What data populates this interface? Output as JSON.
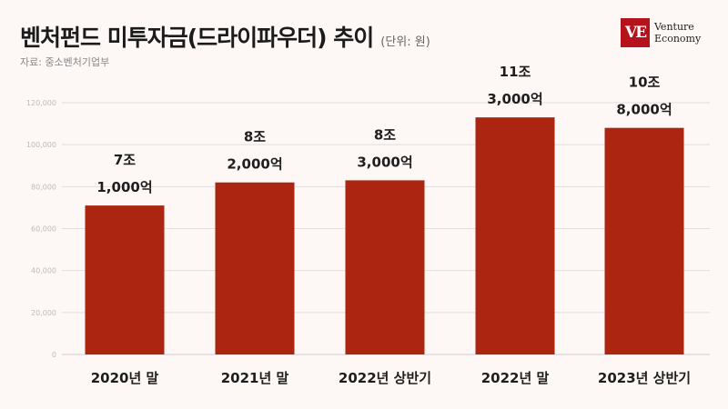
{
  "header": {
    "title": "벤처펀드 미투자금(드라이파우더) 추이",
    "unit": "(단위: 원)",
    "source": "자료: 중소벤처기업부"
  },
  "logo": {
    "mark": "VE",
    "line1": "Venture",
    "line2": "Economy",
    "color": "#b5121b"
  },
  "chart_data": {
    "type": "bar",
    "categories": [
      "2020년 말",
      "2021년 말",
      "2022년 상반기",
      "2022년 말",
      "2023년 상반기"
    ],
    "values": [
      71000,
      82000,
      83000,
      113000,
      108000
    ],
    "data_labels": [
      [
        "7조",
        "1,000억"
      ],
      [
        "8조",
        "2,000억"
      ],
      [
        "8조",
        "3,000억"
      ],
      [
        "11조",
        "3,000억"
      ],
      [
        "10조",
        "8,000억"
      ]
    ],
    "y_ticks": [
      0,
      20000,
      40000,
      60000,
      80000,
      100000,
      120000
    ],
    "y_tick_labels": [
      "0",
      "20,000",
      "40,000",
      "60,000",
      "80,000",
      "100,000",
      "120,000"
    ],
    "ylim": [
      0,
      120000
    ],
    "grid": true,
    "bar_color": "#ac2510"
  }
}
